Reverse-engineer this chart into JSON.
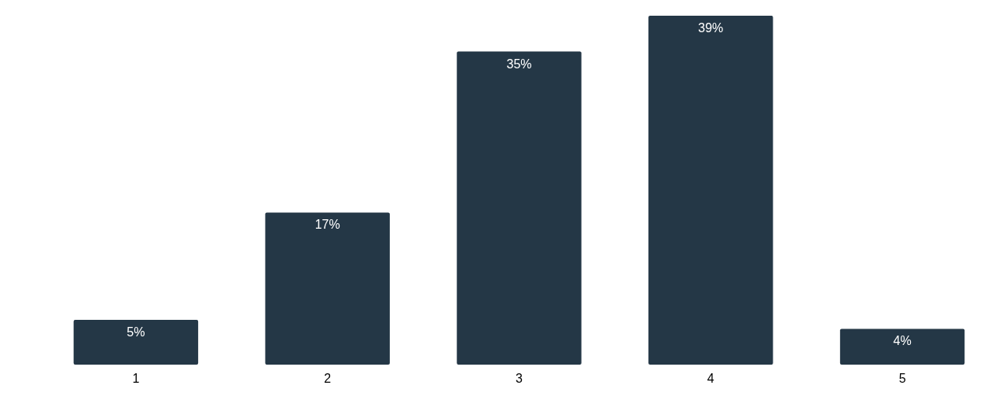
{
  "chart_data": {
    "type": "bar",
    "categories": [
      "1",
      "2",
      "3",
      "4",
      "5"
    ],
    "values": [
      5,
      17,
      35,
      39,
      4
    ],
    "color": "#243746",
    "value_labels": [
      "5%",
      "17%",
      "35%",
      "39%",
      "4%"
    ]
  }
}
